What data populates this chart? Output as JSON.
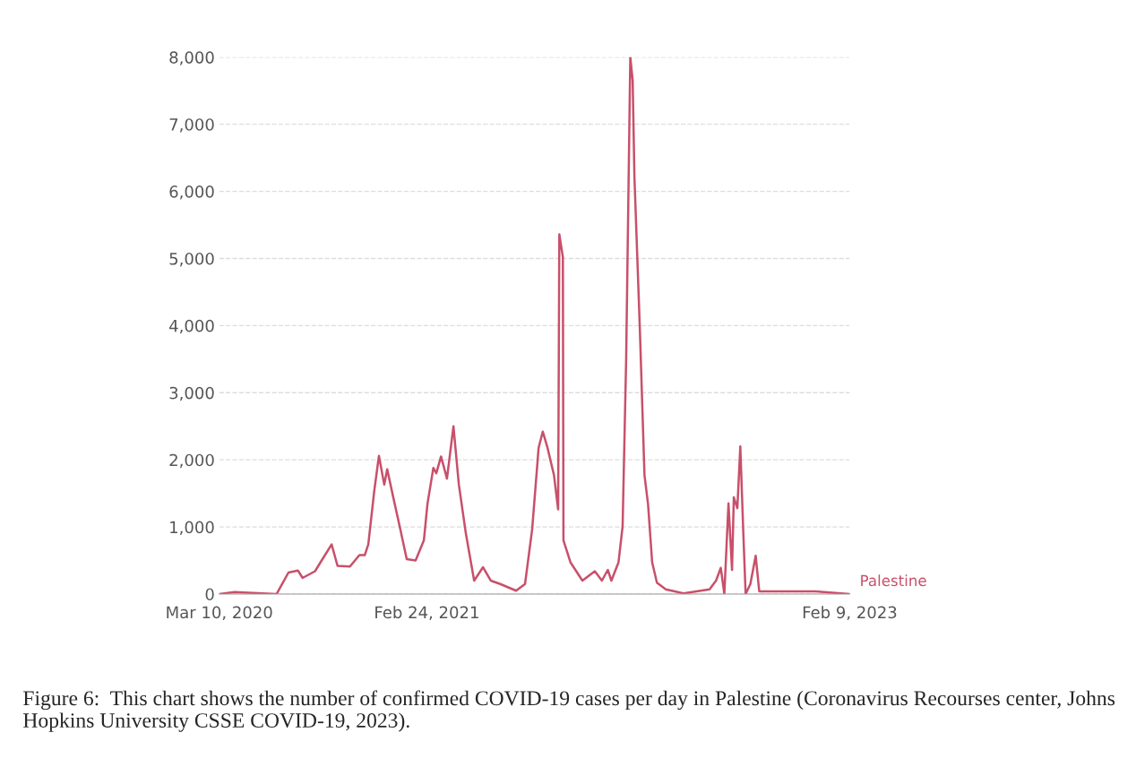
{
  "chart_data": {
    "type": "line",
    "x": [
      "2020-03-10",
      "2020-04-05",
      "2020-06-15",
      "2020-07-05",
      "2020-07-21",
      "2020-07-29",
      "2020-08-19",
      "2020-08-28",
      "2020-09-16",
      "2020-09-26",
      "2020-10-17",
      "2020-11-02",
      "2020-11-11",
      "2020-11-17",
      "2020-11-27",
      "2020-12-05",
      "2020-12-14",
      "2020-12-19",
      "2020-12-29",
      "2021-01-09",
      "2021-01-21",
      "2021-02-05",
      "2021-02-19",
      "2021-02-25",
      "2021-03-07",
      "2021-03-12",
      "2021-03-20",
      "2021-03-30",
      "2021-04-10",
      "2021-04-19",
      "2021-05-01",
      "2021-05-15",
      "2021-05-30",
      "2021-06-12",
      "2021-06-28",
      "2021-07-25",
      "2021-08-09",
      "2021-08-21",
      "2021-09-01",
      "2021-09-08",
      "2021-09-16",
      "2021-09-27",
      "2021-10-04",
      "2021-10-06",
      "2021-10-12",
      "2021-10-13",
      "2021-10-25",
      "2021-11-14",
      "2021-12-05",
      "2021-12-17",
      "2021-12-27",
      "2022-01-02",
      "2022-01-14",
      "2022-01-21",
      "2022-01-27",
      "2022-02-03",
      "2022-02-07",
      "2022-02-10",
      "2022-02-19",
      "2022-02-27",
      "2022-03-05",
      "2022-03-12",
      "2022-03-20",
      "2022-04-04",
      "2022-05-04",
      "2022-06-17",
      "2022-06-28",
      "2022-07-06",
      "2022-07-12",
      "2022-07-19",
      "2022-07-25",
      "2022-07-28",
      "2022-08-03",
      "2022-08-08",
      "2022-08-13",
      "2022-08-17",
      "2022-08-25",
      "2022-09-03",
      "2022-09-09",
      "2022-10-26",
      "2022-12-13",
      "2023-02-09"
    ],
    "series": [
      {
        "name": "Palestine",
        "color": "#c8506a",
        "values": [
          0,
          30,
          0,
          320,
          350,
          240,
          340,
          470,
          740,
          420,
          410,
          580,
          580,
          740,
          1530,
          2060,
          1630,
          1860,
          1450,
          1010,
          520,
          500,
          800,
          1340,
          1880,
          1800,
          2050,
          1720,
          2500,
          1640,
          900,
          200,
          400,
          200,
          150,
          50,
          150,
          960,
          2180,
          2420,
          2180,
          1770,
          1260,
          5360,
          5020,
          800,
          470,
          200,
          340,
          200,
          360,
          200,
          470,
          1010,
          3500,
          8000,
          7650,
          6210,
          3990,
          1770,
          1340,
          470,
          170,
          70,
          10,
          70,
          200,
          390,
          0,
          1350,
          360,
          1440,
          1280,
          2200,
          930,
          0,
          150,
          570,
          40,
          40,
          40,
          0
        ]
      }
    ],
    "xlim": [
      "2020-03-10",
      "2023-02-09"
    ],
    "xticks": [
      {
        "value": "2020-03-10",
        "label": "Mar 10, 2020"
      },
      {
        "value": "2021-02-24",
        "label": "Feb 24, 2021"
      },
      {
        "value": "2023-02-09",
        "label": "Feb 9, 2023"
      }
    ],
    "ylim": [
      0,
      8000
    ],
    "yticks": [
      {
        "value": 0,
        "label": "0"
      },
      {
        "value": 1000,
        "label": "1,000"
      },
      {
        "value": 2000,
        "label": "2,000"
      },
      {
        "value": 3000,
        "label": "3,000"
      },
      {
        "value": 4000,
        "label": "4,000"
      },
      {
        "value": 5000,
        "label": "5,000"
      },
      {
        "value": 6000,
        "label": "6,000"
      },
      {
        "value": 7000,
        "label": "7,000"
      },
      {
        "value": 8000,
        "label": "8,000"
      }
    ],
    "grid": "y",
    "marker": "none",
    "line_style": "solid",
    "annotations": [
      "Figure 6:  This chart shows the number of confirmed COVID-19 cases per day in Palestine (Coronavirus Recourses center, Johns Hopkins University CSSE COVID-19, 2023)."
    ]
  }
}
